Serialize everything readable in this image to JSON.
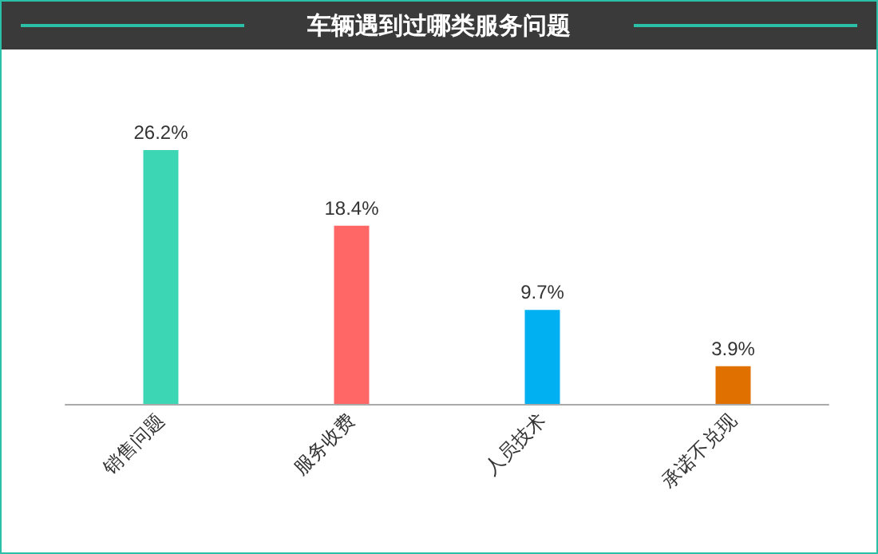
{
  "chart_data": {
    "type": "bar",
    "title": "车辆遇到过哪类服务问题",
    "categories": [
      "销售问题",
      "服务收费",
      "人员技术",
      "承诺不兑现"
    ],
    "values": [
      26.2,
      18.4,
      9.7,
      3.9
    ],
    "colors": [
      "#3dd6b5",
      "#ff6666",
      "#00b0f0",
      "#e07000"
    ],
    "value_labels": [
      "26.2%",
      "18.4%",
      "9.7%",
      "3.9%"
    ]
  }
}
